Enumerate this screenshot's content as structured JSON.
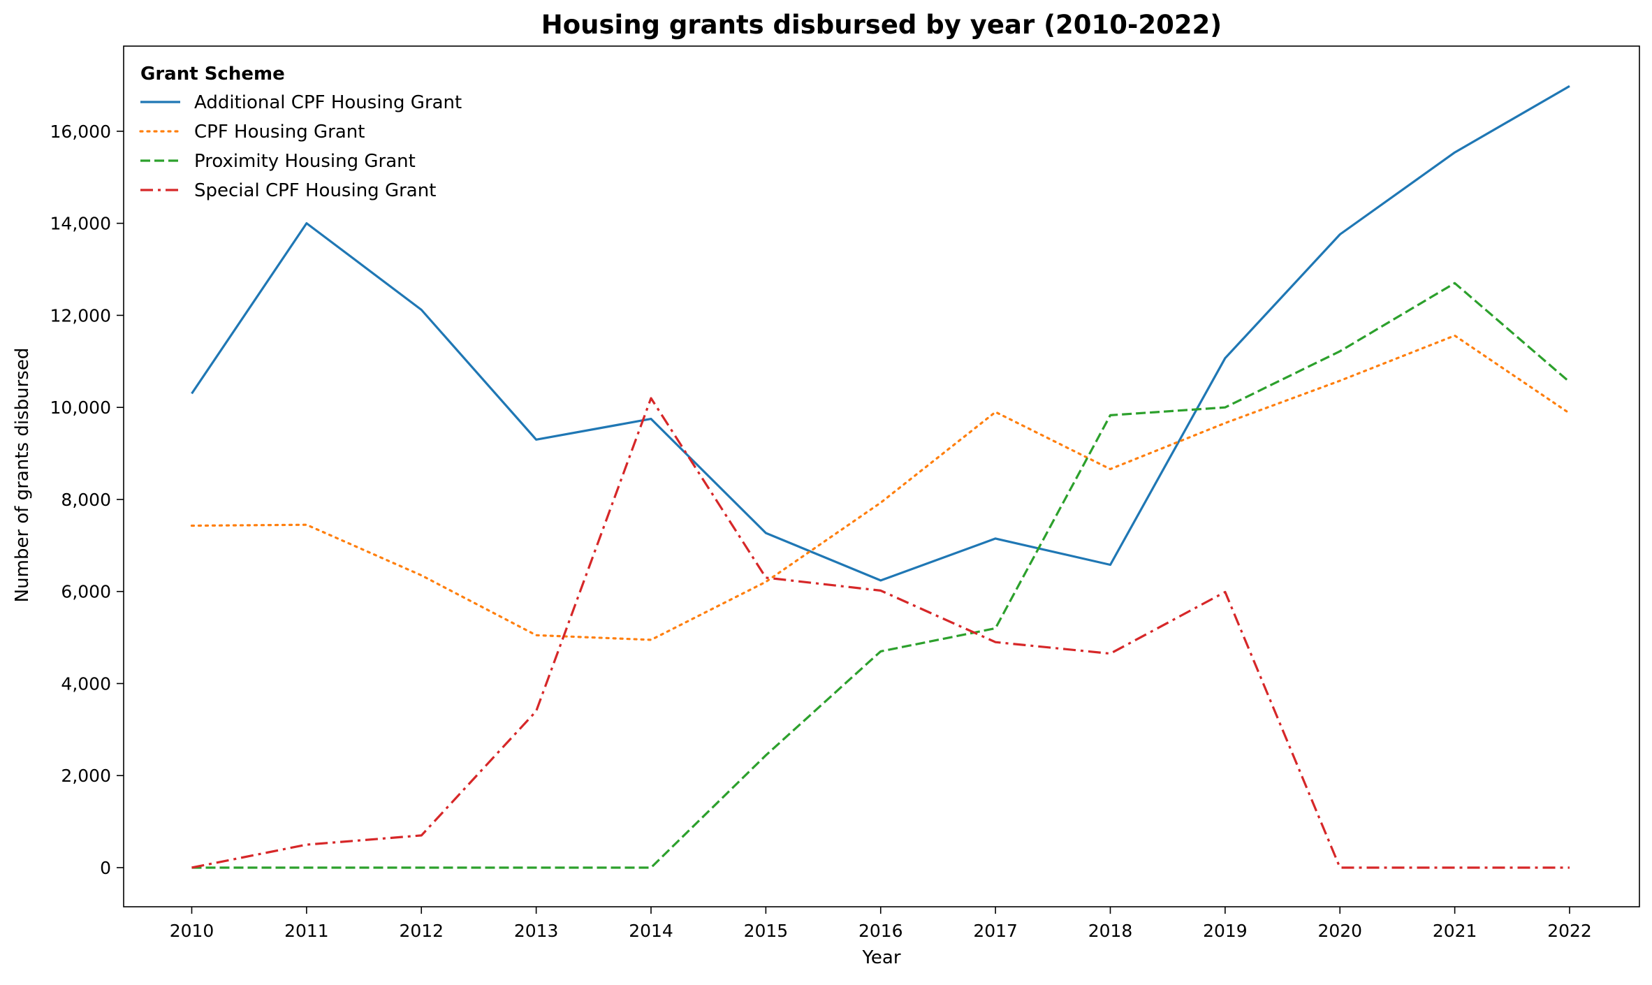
{
  "chart_data": {
    "type": "line",
    "title": "Housing grants disbursed by year (2010-2022)",
    "xlabel": "Year",
    "ylabel": "Number of grants disbursed",
    "categories": [
      "2010",
      "2011",
      "2012",
      "2013",
      "2014",
      "2015",
      "2016",
      "2017",
      "2018",
      "2019",
      "2020",
      "2021",
      "2022"
    ],
    "ylim": [
      -850,
      17850
    ],
    "yticks": [
      0,
      2000,
      4000,
      6000,
      8000,
      10000,
      12000,
      14000,
      16000
    ],
    "ytick_labels": [
      "0",
      "2,000",
      "4,000",
      "6,000",
      "8,000",
      "10,000",
      "12,000",
      "14,000",
      "16,000"
    ],
    "grid": false,
    "legend": {
      "title": "Grant Scheme",
      "placement": "top-left"
    },
    "series": [
      {
        "name": "Additional CPF Housing Grant",
        "color": "#1f77b4",
        "dash": "solid",
        "values": [
          10300,
          14000,
          12120,
          9300,
          9750,
          7270,
          6240,
          7150,
          6580,
          11070,
          13760,
          15540,
          16980
        ]
      },
      {
        "name": "CPF Housing Grant",
        "color": "#ff7f0e",
        "dash": "dotted",
        "values": [
          7430,
          7450,
          6350,
          5050,
          4950,
          6210,
          7930,
          9900,
          8660,
          9660,
          10580,
          11560,
          9870
        ]
      },
      {
        "name": "Proximity Housing Grant",
        "color": "#2ca02c",
        "dash": "dashed",
        "values": [
          0,
          0,
          0,
          0,
          0,
          2440,
          4700,
          5200,
          9830,
          10000,
          11220,
          12700,
          10550
        ]
      },
      {
        "name": "Special CPF Housing Grant",
        "color": "#d62728",
        "dash": "dashdot",
        "values": [
          0,
          500,
          700,
          3400,
          10200,
          6300,
          6020,
          4900,
          4650,
          5990,
          0,
          0,
          0
        ]
      }
    ]
  }
}
